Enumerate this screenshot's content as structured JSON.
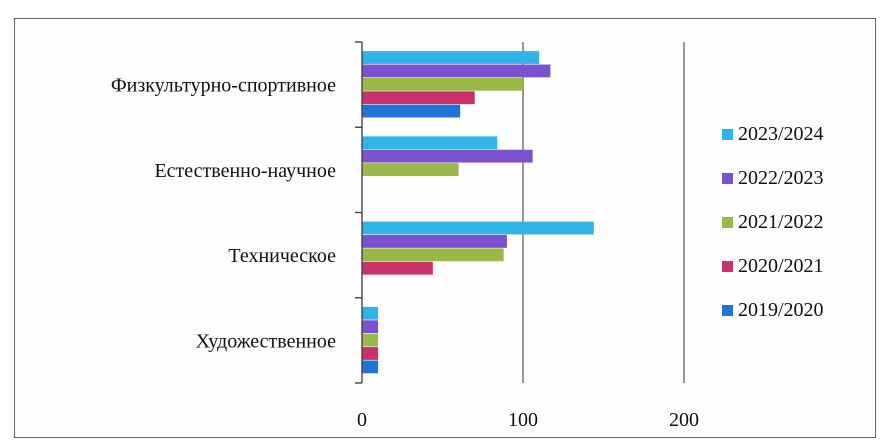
{
  "chart_data": {
    "type": "bar",
    "orientation": "horizontal",
    "title": "",
    "xlabel": "",
    "ylabel": "",
    "xlim": [
      0,
      200
    ],
    "x_ticks": [
      0,
      100,
      200
    ],
    "grid": "vertical",
    "legend_position": "right",
    "categories": [
      "Физкультурно-спортивное",
      "Естественно-научное",
      "Техническое",
      "Художественное"
    ],
    "series": [
      {
        "name": "2023/2024",
        "color": "#2fb4e8",
        "values": [
          110,
          84,
          144,
          10
        ]
      },
      {
        "name": "2022/2023",
        "color": "#7a52d0",
        "values": [
          117,
          106,
          90,
          10
        ]
      },
      {
        "name": "2021/2022",
        "color": "#9ab846",
        "values": [
          100,
          60,
          88,
          10
        ]
      },
      {
        "name": "2020/2021",
        "color": "#c8326a",
        "values": [
          70,
          0,
          44,
          10
        ]
      },
      {
        "name": "2019/2020",
        "color": "#1f74d8",
        "values": [
          61,
          0,
          0,
          10
        ]
      }
    ]
  }
}
